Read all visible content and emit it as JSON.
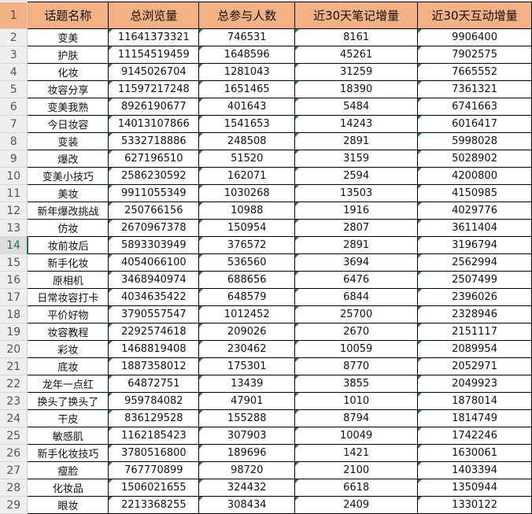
{
  "sheet": {
    "selected_row": 14,
    "header_color": "#F4B183",
    "headers": [
      "话题名称",
      "总浏览量",
      "总参与人数",
      "近30天笔记增量",
      "近30天互动增量"
    ],
    "rows": [
      [
        "变美",
        "11641373321",
        "746531",
        "8161",
        "9906400"
      ],
      [
        "护肤",
        "11154519459",
        "1648596",
        "45261",
        "7902575"
      ],
      [
        "化妆",
        "9145026704",
        "1281043",
        "31259",
        "7665552"
      ],
      [
        "妆容分享",
        "11597217248",
        "1651465",
        "18390",
        "7361321"
      ],
      [
        "变美我熟",
        "8926190677",
        "401643",
        "5484",
        "6741663"
      ],
      [
        "今日妆容",
        "14013107866",
        "1541653",
        "14243",
        "6016417"
      ],
      [
        "变装",
        "5332718886",
        "248508",
        "2891",
        "5998028"
      ],
      [
        "爆改",
        "627196510",
        "51520",
        "3159",
        "5028902"
      ],
      [
        "变美小技巧",
        "2586230592",
        "162071",
        "2594",
        "4200800"
      ],
      [
        "美妆",
        "9911055349",
        "1030268",
        "13503",
        "4150985"
      ],
      [
        "新年爆改挑战",
        "250766156",
        "10988",
        "1916",
        "4029776"
      ],
      [
        "仿妆",
        "2670967378",
        "150954",
        "2807",
        "3611404"
      ],
      [
        "妆前妆后",
        "5893303949",
        "376572",
        "2891",
        "3196794"
      ],
      [
        "新手化妆",
        "4054066100",
        "536560",
        "3694",
        "2562994"
      ],
      [
        "原相机",
        "3468940974",
        "688656",
        "6476",
        "2507499"
      ],
      [
        "日常妆容打卡",
        "4034635422",
        "648579",
        "6844",
        "2396026"
      ],
      [
        "平价好物",
        "3790557547",
        "1012452",
        "25700",
        "2328946"
      ],
      [
        "妆容教程",
        "2292574618",
        "209026",
        "2670",
        "2151117"
      ],
      [
        "彩妆",
        "1468819408",
        "230462",
        "10059",
        "2089954"
      ],
      [
        "底妆",
        "1887358012",
        "175301",
        "8770",
        "2052971"
      ],
      [
        "龙年一点红",
        "64872751",
        "13439",
        "3855",
        "2049923"
      ],
      [
        "换头了换头了",
        "959784082",
        "47901",
        "1010",
        "1878014"
      ],
      [
        "干皮",
        "836129528",
        "155288",
        "8794",
        "1814749"
      ],
      [
        "敏感肌",
        "1162185423",
        "307903",
        "10049",
        "1742246"
      ],
      [
        "新手化妆技巧",
        "3780516800",
        "189696",
        "1421",
        "1630061"
      ],
      [
        "瘦脸",
        "767770899",
        "98720",
        "2100",
        "1403394"
      ],
      [
        "化妆品",
        "1506021655",
        "324432",
        "6618",
        "1350944"
      ],
      [
        "眼妆",
        "2213368255",
        "308434",
        "2409",
        "1330122"
      ]
    ]
  }
}
